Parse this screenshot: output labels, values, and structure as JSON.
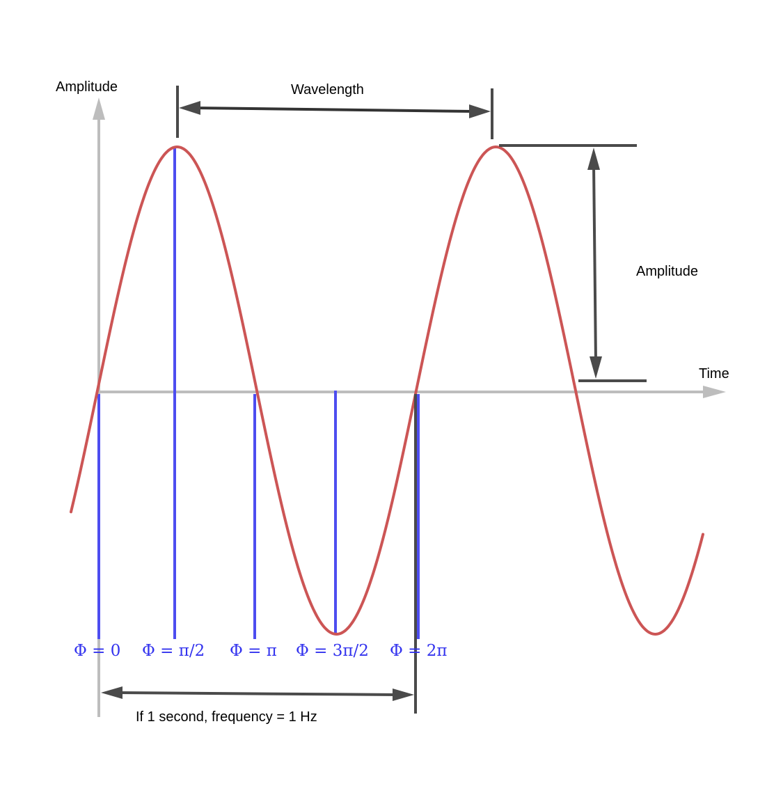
{
  "axes": {
    "y_label": "Amplitude",
    "x_label": "Time",
    "axis_color": "#bdbdbd"
  },
  "wave": {
    "color": "#cc5555",
    "type": "sine",
    "cycles_shown": 2
  },
  "annotations": {
    "wavelength_label": "Wavelength",
    "amplitude_label": "Amplitude",
    "frequency_label": "If 1 second, frequency = 1 Hz",
    "dimension_color": "#4a4a4a"
  },
  "phase_markers": {
    "color": "#3333ee",
    "labels": [
      "Φ = 0",
      "Φ = π/2",
      "Φ = π",
      "Φ = 3π/2",
      "Φ = 2π"
    ]
  }
}
